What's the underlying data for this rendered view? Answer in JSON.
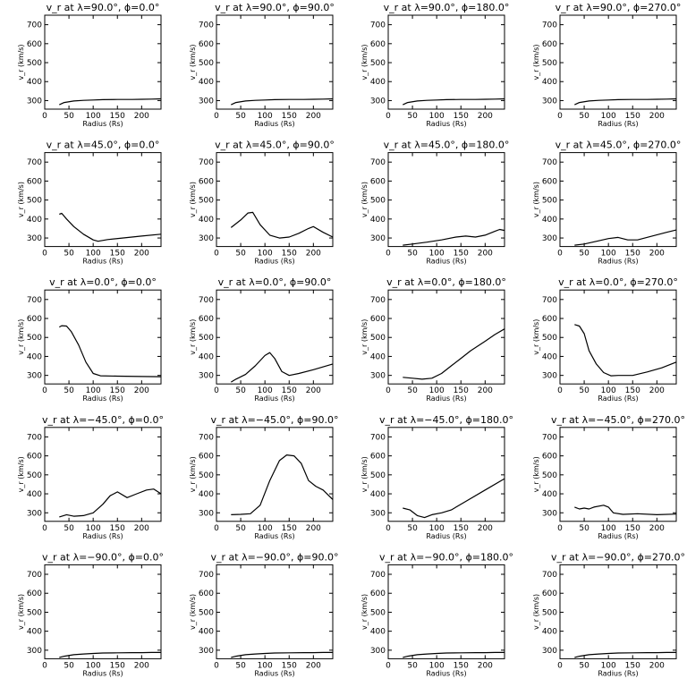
{
  "figure": {
    "xlabel": "Radius (Rs)",
    "ylabel": "v_r (km/s)",
    "xlim": [
      0,
      240
    ],
    "ylim": [
      255,
      750
    ],
    "xticks": [
      0,
      50,
      100,
      150,
      200
    ],
    "yticks": [
      300,
      400,
      500,
      600,
      700
    ]
  },
  "chart_data": [
    {
      "type": "line",
      "title": "v_r at λ=90.0°, ϕ=0.0°",
      "xlabel": "Radius (Rs)",
      "ylabel": "v_r (km/s)",
      "xlim": [
        0,
        240
      ],
      "ylim": [
        255,
        750
      ],
      "series": [
        {
          "x": [
            30,
            40,
            60,
            80,
            100,
            120,
            150,
            180,
            200,
            220,
            240
          ],
          "y": [
            278,
            290,
            298,
            301,
            303,
            305,
            306,
            306,
            307,
            308,
            309
          ]
        }
      ]
    },
    {
      "type": "line",
      "title": "v_r at λ=90.0°, ϕ=90.0°",
      "xlabel": "Radius (Rs)",
      "ylabel": "v_r (km/s)",
      "xlim": [
        0,
        240
      ],
      "ylim": [
        255,
        750
      ],
      "series": [
        {
          "x": [
            30,
            40,
            60,
            80,
            100,
            120,
            150,
            180,
            200,
            220,
            240
          ],
          "y": [
            278,
            290,
            298,
            301,
            303,
            305,
            306,
            306,
            307,
            308,
            309
          ]
        }
      ]
    },
    {
      "type": "line",
      "title": "v_r at λ=90.0°, ϕ=180.0°",
      "xlabel": "Radius (Rs)",
      "ylabel": "v_r (km/s)",
      "xlim": [
        0,
        240
      ],
      "ylim": [
        255,
        750
      ],
      "series": [
        {
          "x": [
            30,
            40,
            60,
            80,
            100,
            120,
            150,
            180,
            200,
            220,
            240
          ],
          "y": [
            278,
            290,
            298,
            301,
            303,
            305,
            306,
            306,
            307,
            308,
            309
          ]
        }
      ]
    },
    {
      "type": "line",
      "title": "v_r at λ=90.0°, ϕ=270.0°",
      "xlabel": "Radius (Rs)",
      "ylabel": "v_r (km/s)",
      "xlim": [
        0,
        240
      ],
      "ylim": [
        255,
        750
      ],
      "series": [
        {
          "x": [
            30,
            40,
            60,
            80,
            100,
            120,
            150,
            180,
            200,
            220,
            240
          ],
          "y": [
            278,
            290,
            298,
            301,
            303,
            305,
            306,
            306,
            307,
            308,
            309
          ]
        }
      ]
    },
    {
      "type": "line",
      "title": "v_r at λ=45.0°, ϕ=0.0°",
      "xlabel": "Radius (Rs)",
      "ylabel": "v_r (km/s)",
      "xlim": [
        0,
        240
      ],
      "ylim": [
        255,
        750
      ],
      "series": [
        {
          "x": [
            30,
            35,
            45,
            60,
            80,
            100,
            110,
            130,
            160,
            200,
            240
          ],
          "y": [
            425,
            430,
            400,
            360,
            320,
            290,
            283,
            292,
            300,
            310,
            320
          ]
        }
      ]
    },
    {
      "type": "line",
      "title": "v_r at λ=45.0°, ϕ=90.0°",
      "xlabel": "Radius (Rs)",
      "ylabel": "v_r (km/s)",
      "xlim": [
        0,
        240
      ],
      "ylim": [
        255,
        750
      ],
      "series": [
        {
          "x": [
            30,
            50,
            65,
            75,
            90,
            110,
            130,
            150,
            170,
            190,
            200,
            220,
            240
          ],
          "y": [
            355,
            395,
            432,
            435,
            370,
            315,
            300,
            305,
            325,
            350,
            360,
            330,
            305
          ]
        }
      ]
    },
    {
      "type": "line",
      "title": "v_r at λ=45.0°, ϕ=180.0°",
      "xlabel": "Radius (Rs)",
      "ylabel": "v_r (km/s)",
      "xlim": [
        0,
        240
      ],
      "ylim": [
        255,
        750
      ],
      "series": [
        {
          "x": [
            30,
            50,
            80,
            110,
            140,
            160,
            180,
            200,
            220,
            230,
            240
          ],
          "y": [
            262,
            268,
            278,
            290,
            305,
            310,
            305,
            315,
            335,
            345,
            340
          ]
        }
      ]
    },
    {
      "type": "line",
      "title": "v_r at λ=45.0°, ϕ=270.0°",
      "xlabel": "Radius (Rs)",
      "ylabel": "v_r (km/s)",
      "xlim": [
        0,
        240
      ],
      "ylim": [
        255,
        750
      ],
      "series": [
        {
          "x": [
            30,
            50,
            80,
            100,
            120,
            140,
            160,
            190,
            220,
            240
          ],
          "y": [
            262,
            268,
            285,
            297,
            303,
            290,
            290,
            310,
            330,
            342
          ]
        }
      ]
    },
    {
      "type": "line",
      "title": "v_r at λ=0.0°, ϕ=0.0°",
      "xlabel": "Radius (Rs)",
      "ylabel": "v_r (km/s)",
      "xlim": [
        0,
        240
      ],
      "ylim": [
        255,
        750
      ],
      "series": [
        {
          "x": [
            30,
            35,
            45,
            55,
            70,
            85,
            100,
            115,
            150,
            200,
            240
          ],
          "y": [
            555,
            562,
            560,
            530,
            460,
            370,
            310,
            298,
            296,
            294,
            293
          ]
        }
      ]
    },
    {
      "type": "line",
      "title": "v_r at λ=0.0°, ϕ=90.0°",
      "xlabel": "Radius (Rs)",
      "ylabel": "v_r (km/s)",
      "xlim": [
        0,
        240
      ],
      "ylim": [
        255,
        750
      ],
      "series": [
        {
          "x": [
            30,
            40,
            60,
            80,
            100,
            110,
            120,
            135,
            150,
            170,
            200,
            240
          ],
          "y": [
            265,
            280,
            305,
            350,
            405,
            420,
            390,
            320,
            300,
            310,
            330,
            360
          ]
        }
      ]
    },
    {
      "type": "line",
      "title": "v_r at λ=0.0°, ϕ=180.0°",
      "xlabel": "Radius (Rs)",
      "ylabel": "v_r (km/s)",
      "xlim": [
        0,
        240
      ],
      "ylim": [
        255,
        750
      ],
      "series": [
        {
          "x": [
            30,
            50,
            70,
            90,
            110,
            130,
            150,
            170,
            200,
            220,
            240
          ],
          "y": [
            290,
            285,
            280,
            285,
            310,
            350,
            390,
            430,
            480,
            515,
            545
          ]
        }
      ]
    },
    {
      "type": "line",
      "title": "v_r at λ=0.0°, ϕ=270.0°",
      "xlabel": "Radius (Rs)",
      "ylabel": "v_r (km/s)",
      "xlim": [
        0,
        240
      ],
      "ylim": [
        255,
        750
      ],
      "series": [
        {
          "x": [
            30,
            40,
            50,
            60,
            75,
            90,
            105,
            120,
            150,
            180,
            210,
            240
          ],
          "y": [
            568,
            560,
            520,
            430,
            360,
            315,
            298,
            300,
            300,
            318,
            340,
            370
          ]
        }
      ]
    },
    {
      "type": "line",
      "title": "v_r at λ=−45.0°, ϕ=0.0°",
      "xlabel": "Radius (Rs)",
      "ylabel": "v_r (km/s)",
      "xlim": [
        0,
        240
      ],
      "ylim": [
        255,
        750
      ],
      "series": [
        {
          "x": [
            30,
            45,
            60,
            80,
            100,
            120,
            135,
            150,
            170,
            190,
            210,
            225,
            240
          ],
          "y": [
            278,
            290,
            282,
            285,
            300,
            345,
            390,
            410,
            380,
            400,
            420,
            425,
            400
          ]
        }
      ]
    },
    {
      "type": "line",
      "title": "v_r at λ=−45.0°, ϕ=90.0°",
      "xlabel": "Radius (Rs)",
      "ylabel": "v_r (km/s)",
      "xlim": [
        0,
        240
      ],
      "ylim": [
        255,
        750
      ],
      "series": [
        {
          "x": [
            30,
            50,
            70,
            90,
            110,
            130,
            145,
            160,
            175,
            190,
            205,
            220,
            240
          ],
          "y": [
            290,
            292,
            295,
            340,
            470,
            575,
            605,
            600,
            560,
            470,
            440,
            420,
            370
          ]
        }
      ]
    },
    {
      "type": "line",
      "title": "v_r at λ=−45.0°, ϕ=180.0°",
      "xlabel": "Radius (Rs)",
      "ylabel": "v_r (km/s)",
      "xlim": [
        0,
        240
      ],
      "ylim": [
        255,
        750
      ],
      "series": [
        {
          "x": [
            30,
            45,
            60,
            75,
            90,
            110,
            130,
            160,
            200,
            240
          ],
          "y": [
            325,
            315,
            285,
            275,
            290,
            300,
            315,
            360,
            420,
            480
          ]
        }
      ]
    },
    {
      "type": "line",
      "title": "v_r at λ=−45.0°, ϕ=270.0°",
      "xlabel": "Radius (Rs)",
      "ylabel": "v_r (km/s)",
      "xlim": [
        0,
        240
      ],
      "ylim": [
        255,
        750
      ],
      "series": [
        {
          "x": [
            30,
            40,
            50,
            60,
            70,
            90,
            100,
            110,
            130,
            160,
            200,
            240
          ],
          "y": [
            330,
            320,
            325,
            320,
            330,
            340,
            330,
            300,
            292,
            295,
            290,
            293
          ]
        }
      ]
    },
    {
      "type": "line",
      "title": "v_r at λ=−90.0°, ϕ=0.0°",
      "xlabel": "Radius (Rs)",
      "ylabel": "v_r (km/s)",
      "xlim": [
        0,
        240
      ],
      "ylim": [
        255,
        750
      ],
      "series": [
        {
          "x": [
            30,
            40,
            60,
            80,
            100,
            120,
            150,
            180,
            200,
            220,
            240
          ],
          "y": [
            262,
            268,
            276,
            280,
            283,
            285,
            286,
            287,
            287,
            288,
            288
          ]
        }
      ]
    },
    {
      "type": "line",
      "title": "v_r at λ=−90.0°, ϕ=90.0°",
      "xlabel": "Radius (Rs)",
      "ylabel": "v_r (km/s)",
      "xlim": [
        0,
        240
      ],
      "ylim": [
        255,
        750
      ],
      "series": [
        {
          "x": [
            30,
            40,
            60,
            80,
            100,
            120,
            150,
            180,
            200,
            220,
            240
          ],
          "y": [
            262,
            268,
            276,
            280,
            283,
            285,
            286,
            287,
            287,
            288,
            288
          ]
        }
      ]
    },
    {
      "type": "line",
      "title": "v_r at λ=−90.0°, ϕ=180.0°",
      "xlabel": "Radius (Rs)",
      "ylabel": "v_r (km/s)",
      "xlim": [
        0,
        240
      ],
      "ylim": [
        255,
        750
      ],
      "series": [
        {
          "x": [
            30,
            40,
            60,
            80,
            100,
            120,
            150,
            180,
            200,
            220,
            240
          ],
          "y": [
            262,
            268,
            276,
            280,
            283,
            285,
            286,
            287,
            287,
            288,
            288
          ]
        }
      ]
    },
    {
      "type": "line",
      "title": "v_r at λ=−90.0°, ϕ=270.0°",
      "xlabel": "Radius (Rs)",
      "ylabel": "v_r (km/s)",
      "xlim": [
        0,
        240
      ],
      "ylim": [
        255,
        750
      ],
      "series": [
        {
          "x": [
            30,
            40,
            60,
            80,
            100,
            120,
            150,
            180,
            200,
            220,
            240
          ],
          "y": [
            262,
            268,
            276,
            280,
            283,
            285,
            286,
            287,
            287,
            288,
            288
          ]
        }
      ]
    }
  ]
}
